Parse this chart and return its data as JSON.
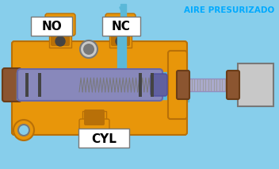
{
  "bg_color": "#87CEEB",
  "title_text": "AIRE PRESURIZADO",
  "title_color": "#00AAFF",
  "label_NO": "NO",
  "label_NC": "NC",
  "label_CYL": "CYL",
  "orange": "#E8960A",
  "orange_dark": "#B87008",
  "orange_light": "#F5B030",
  "blue_channel": "#5BB8D8",
  "blue_bg": "#87CEEB",
  "purple": "#8888BB",
  "purple_light": "#AAAACC",
  "gray": "#AAAAAA",
  "gray_light": "#C8C8C8",
  "gray_dark": "#787878",
  "gray_mid": "#999999",
  "brown": "#8B5530",
  "brown_dark": "#6B3D18",
  "yellow": "#E8E800",
  "white": "#FFFFFF",
  "black": "#000000",
  "dark_gray": "#444444"
}
